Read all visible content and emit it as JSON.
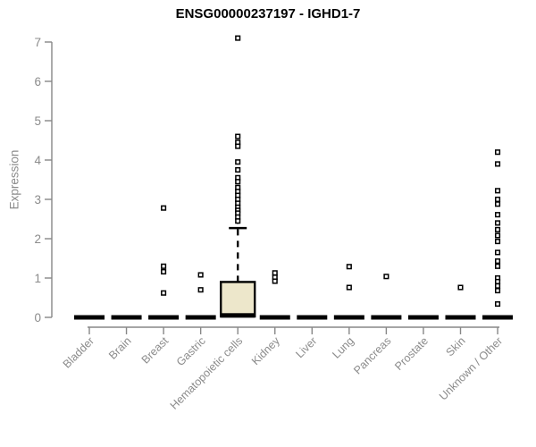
{
  "chart_data": {
    "type": "boxplot",
    "title": "ENSG00000237197 - IGHD1-7",
    "ylabel": "Expression",
    "xlabel": "",
    "ylim": [
      0,
      7
    ],
    "yticks": [
      0,
      1,
      2,
      3,
      4,
      5,
      6,
      7
    ],
    "grid": "off",
    "legend": "none",
    "categories": [
      "Bladder",
      "Brain",
      "Breast",
      "Gastric",
      "Hematopoietic cells",
      "Kidney",
      "Liver",
      "Lung",
      "Pancreas",
      "Prostate",
      "Skin",
      "Unknown / Other"
    ],
    "boxes": [
      {
        "category": "Bladder",
        "median": 0,
        "q1": 0,
        "q3": 0,
        "whisker_low": 0,
        "whisker_high": 0,
        "outliers": []
      },
      {
        "category": "Brain",
        "median": 0,
        "q1": 0,
        "q3": 0,
        "whisker_low": 0,
        "whisker_high": 0,
        "outliers": []
      },
      {
        "category": "Breast",
        "median": 0,
        "q1": 0,
        "q3": 0,
        "whisker_low": 0,
        "whisker_high": 0,
        "outliers": [
          2.78,
          1.3,
          1.16,
          0.62
        ]
      },
      {
        "category": "Gastric",
        "median": 0,
        "q1": 0,
        "q3": 0,
        "whisker_low": 0,
        "whisker_high": 0,
        "outliers": [
          1.08,
          0.7
        ]
      },
      {
        "category": "Hematopoietic cells",
        "median": 0.05,
        "q1": 0,
        "q3": 0.9,
        "whisker_low": 0,
        "whisker_high": 2.27,
        "outliers": [
          7.1,
          4.6,
          4.45,
          4.35,
          3.95,
          3.75,
          3.55,
          3.45,
          3.3,
          3.2,
          3.1,
          3.0,
          2.9,
          2.8,
          2.72,
          2.65,
          2.55,
          2.45
        ]
      },
      {
        "category": "Kidney",
        "median": 0,
        "q1": 0,
        "q3": 0,
        "whisker_low": 0,
        "whisker_high": 0,
        "outliers": [
          1.13,
          1.02,
          0.92
        ]
      },
      {
        "category": "Liver",
        "median": 0,
        "q1": 0,
        "q3": 0,
        "whisker_low": 0,
        "whisker_high": 0,
        "outliers": []
      },
      {
        "category": "Lung",
        "median": 0,
        "q1": 0,
        "q3": 0,
        "whisker_low": 0,
        "whisker_high": 0,
        "outliers": [
          1.29,
          0.76
        ]
      },
      {
        "category": "Pancreas",
        "median": 0,
        "q1": 0,
        "q3": 0,
        "whisker_low": 0,
        "whisker_high": 0,
        "outliers": [
          1.04
        ]
      },
      {
        "category": "Prostate",
        "median": 0,
        "q1": 0,
        "q3": 0,
        "whisker_low": 0,
        "whisker_high": 0,
        "outliers": []
      },
      {
        "category": "Skin",
        "median": 0,
        "q1": 0,
        "q3": 0,
        "whisker_low": 0,
        "whisker_high": 0,
        "outliers": [
          0.76
        ]
      },
      {
        "category": "Unknown / Other",
        "median": 0,
        "q1": 0,
        "q3": 0,
        "whisker_low": 0,
        "whisker_high": 0,
        "outliers": [
          4.2,
          3.9,
          3.22,
          3.0,
          2.88,
          2.61,
          2.4,
          2.23,
          2.08,
          1.93,
          1.65,
          1.43,
          1.3,
          1.0,
          0.91,
          0.8,
          0.68,
          0.34
        ]
      }
    ],
    "colors": {
      "box_fill": "#EDE7CB",
      "box_border": "#000000",
      "median": "#000000",
      "outlier_stroke": "#000000",
      "outlier_fill": "#ffffff",
      "axis_line": "#878787",
      "axis_text": "#8b8b8b",
      "title": "#000000",
      "background": "#ffffff"
    }
  }
}
